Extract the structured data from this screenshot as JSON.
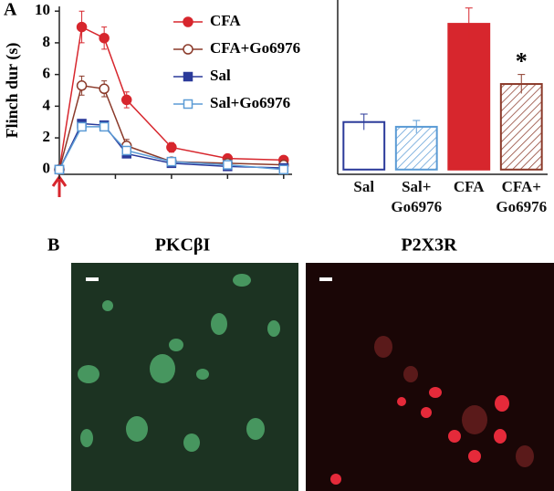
{
  "panels": [
    "A",
    "B"
  ],
  "chart_data": [
    {
      "type": "line",
      "ylabel": "Flinch dur (s)",
      "x": [
        0,
        0.4,
        0.8,
        1.2,
        2,
        3,
        4
      ],
      "xlim": [
        0,
        4.15
      ],
      "xticks": [
        0,
        1,
        2,
        3,
        4
      ],
      "ylim": [
        -0.3,
        10.3
      ],
      "yticks": [
        0,
        2,
        4,
        6,
        8,
        10
      ],
      "series": [
        {
          "name": "CFA",
          "color": "#d7262d",
          "marker": "circle",
          "filled": true,
          "values": [
            0,
            9.0,
            8.3,
            4.4,
            1.4,
            0.7,
            0.6
          ],
          "errors": [
            0,
            1.0,
            0.7,
            0.5,
            0.3,
            0.1,
            0.1
          ]
        },
        {
          "name": "CFA+Go6976",
          "color": "#8b3a2a",
          "marker": "circle",
          "filled": false,
          "values": [
            0,
            5.3,
            5.1,
            1.5,
            0.5,
            0.4,
            0.3
          ],
          "errors": [
            0,
            0.6,
            0.5,
            0.4,
            0.2,
            0.1,
            0.1
          ]
        },
        {
          "name": "Sal",
          "color": "#2b3a9a",
          "marker": "square",
          "filled": true,
          "values": [
            0,
            2.9,
            2.8,
            1.0,
            0.4,
            0.2,
            0.1
          ],
          "errors": [
            0,
            0.2,
            0.2,
            0.2,
            0.1,
            0.1,
            0.1
          ]
        },
        {
          "name": "Sal+Go6976",
          "color": "#5b9bd5",
          "marker": "square",
          "filled": false,
          "values": [
            0,
            2.7,
            2.7,
            1.2,
            0.5,
            0.3,
            0.0
          ],
          "errors": [
            0,
            0.2,
            0.2,
            0.2,
            0.1,
            0.1,
            0.1
          ]
        }
      ]
    },
    {
      "type": "bar",
      "categories": [
        "Sal",
        "Sal+\nGo6976",
        "CFA",
        "CFA+\nGo6976"
      ],
      "values": [
        3.0,
        2.7,
        9.2,
        5.4
      ],
      "errors": [
        0.5,
        0.4,
        1.0,
        0.6
      ],
      "colors": [
        "#2b3a9a",
        "#5b9bd5",
        "#d7262d",
        "#8b3a2a"
      ],
      "fills": [
        "none",
        "hatch",
        "solid",
        "hatch"
      ],
      "ylim": [
        -0.3,
        10.3
      ],
      "annotation": "*"
    }
  ],
  "images": [
    {
      "title": "PKCβI"
    },
    {
      "title": "P2X3R"
    }
  ]
}
